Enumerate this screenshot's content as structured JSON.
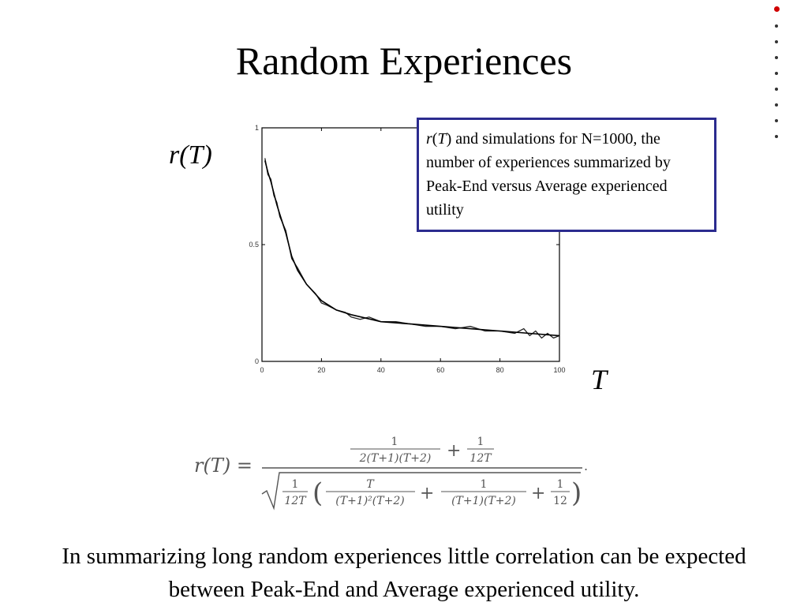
{
  "slide": {
    "title": "Random Experiences",
    "caption": "In summarizing long random experiences little correlation can be expected between Peak-End and Average experienced utility.",
    "nav_dots": 9,
    "active_dot": 0,
    "active_dot_color": "#d00000",
    "callout_border_color": "#2b2b8f"
  },
  "callout": {
    "r": "r",
    "open": "(",
    "T": "T",
    "text": ") and simulations for N=1000, the number of experiences summarized by Peak-End versus Average experienced utility"
  },
  "formula": {
    "lhs": "r(T) =",
    "num1_top": "1",
    "num1_bottom": "2(T+1)(T+2)",
    "plus": "+",
    "num2_top": "1",
    "num2_bottom": "12T",
    "den_a_top": "1",
    "den_a_bottom": "12T",
    "den_b_top": "T",
    "den_b_bottom": "(T+1)²(T+2)",
    "den_c_top": "1",
    "den_c_bottom": "(T+1)(T+2)",
    "den_d_top": "1",
    "den_d_bottom": "12",
    "period": "."
  },
  "chart_data": {
    "type": "line",
    "ylabel": "r(T)",
    "xlabel": "T",
    "xlim": [
      0,
      100
    ],
    "ylim": [
      0,
      1
    ],
    "x_ticks": [
      0,
      20,
      40,
      60,
      80,
      100
    ],
    "y_ticks": [
      0,
      0.5,
      1
    ],
    "x_tick_labels": [
      "0",
      "20",
      "40",
      "60",
      "80",
      "100"
    ],
    "y_tick_labels": [
      "0",
      "0.5",
      "1"
    ],
    "grid": false,
    "series": [
      {
        "kind": "theory",
        "x": [
          1,
          2,
          3,
          4,
          5,
          6,
          8,
          10,
          12,
          15,
          20,
          25,
          30,
          40,
          50,
          60,
          70,
          80,
          90,
          100
        ],
        "y": [
          0.86,
          0.81,
          0.77,
          0.72,
          0.67,
          0.63,
          0.55,
          0.45,
          0.39,
          0.33,
          0.26,
          0.22,
          0.2,
          0.17,
          0.16,
          0.15,
          0.14,
          0.13,
          0.12,
          0.11
        ]
      },
      {
        "kind": "simulation",
        "x": [
          1,
          2,
          3,
          4,
          5,
          6,
          8,
          10,
          12,
          15,
          18,
          20,
          22,
          25,
          28,
          30,
          33,
          36,
          40,
          45,
          50,
          55,
          60,
          65,
          70,
          75,
          80,
          85,
          88,
          90,
          92,
          94,
          96,
          98,
          100
        ],
        "y": [
          0.87,
          0.8,
          0.78,
          0.71,
          0.68,
          0.62,
          0.56,
          0.44,
          0.4,
          0.33,
          0.29,
          0.25,
          0.24,
          0.22,
          0.21,
          0.19,
          0.18,
          0.19,
          0.17,
          0.17,
          0.16,
          0.15,
          0.15,
          0.14,
          0.15,
          0.13,
          0.13,
          0.12,
          0.14,
          0.11,
          0.13,
          0.1,
          0.12,
          0.1,
          0.11
        ]
      }
    ]
  }
}
